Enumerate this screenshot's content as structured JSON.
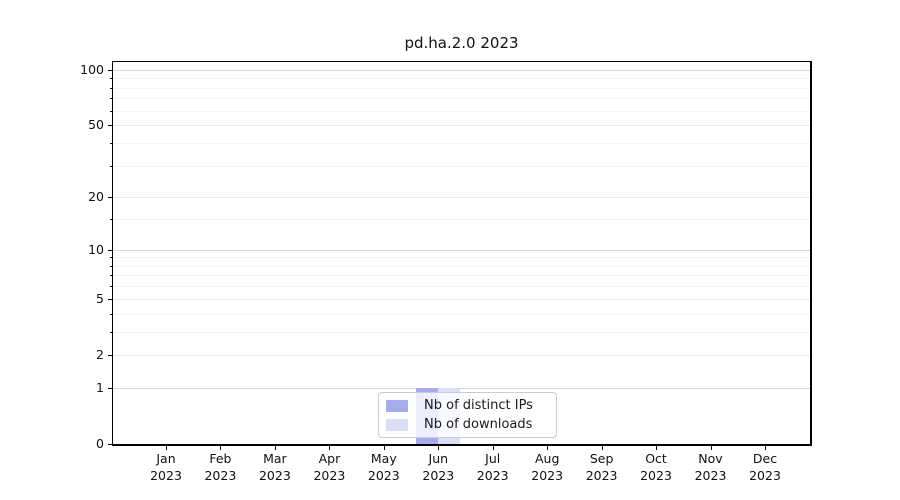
{
  "figure": {
    "background": "#ffffff"
  },
  "chart_data": {
    "type": "bar",
    "title": "pd.ha.2.0 2023",
    "categories": [
      {
        "month": "Jan",
        "year": "2023"
      },
      {
        "month": "Feb",
        "year": "2023"
      },
      {
        "month": "Mar",
        "year": "2023"
      },
      {
        "month": "Apr",
        "year": "2023"
      },
      {
        "month": "May",
        "year": "2023"
      },
      {
        "month": "Jun",
        "year": "2023"
      },
      {
        "month": "Jul",
        "year": "2023"
      },
      {
        "month": "Aug",
        "year": "2023"
      },
      {
        "month": "Sep",
        "year": "2023"
      },
      {
        "month": "Oct",
        "year": "2023"
      },
      {
        "month": "Nov",
        "year": "2023"
      },
      {
        "month": "Dec",
        "year": "2023"
      }
    ],
    "series": [
      {
        "name": "Nb of distinct IPs",
        "color": "#a4abf1",
        "values": [
          0,
          0,
          0,
          0,
          0,
          1,
          0,
          0,
          0,
          0,
          0,
          0
        ]
      },
      {
        "name": "Nb of downloads",
        "color": "#dbdef8",
        "values": [
          0,
          0,
          0,
          0,
          0,
          1,
          0,
          0,
          0,
          0,
          0,
          0
        ]
      }
    ],
    "xlabel": "",
    "ylabel": "",
    "y_scale": "log10(1+v)",
    "ylim": [
      0,
      110
    ],
    "y_ticks": [
      0,
      1,
      2,
      5,
      10,
      20,
      50,
      100
    ],
    "y_major_gridlines": [
      1,
      10,
      100
    ],
    "y_mid_gridlines": [
      2,
      5,
      20,
      50
    ],
    "y_minor_gridlines": [
      3,
      4,
      6,
      7,
      8,
      9,
      15,
      30,
      40,
      60,
      70,
      80,
      90
    ],
    "grid": true,
    "legend_position": "lower center inside",
    "colors": {
      "major_grid": "#d7d7d7",
      "mid_grid": "#e9e9e9",
      "minor_grid": "#f3f3f3",
      "spine": "#000000",
      "background": "#ffffff"
    }
  }
}
